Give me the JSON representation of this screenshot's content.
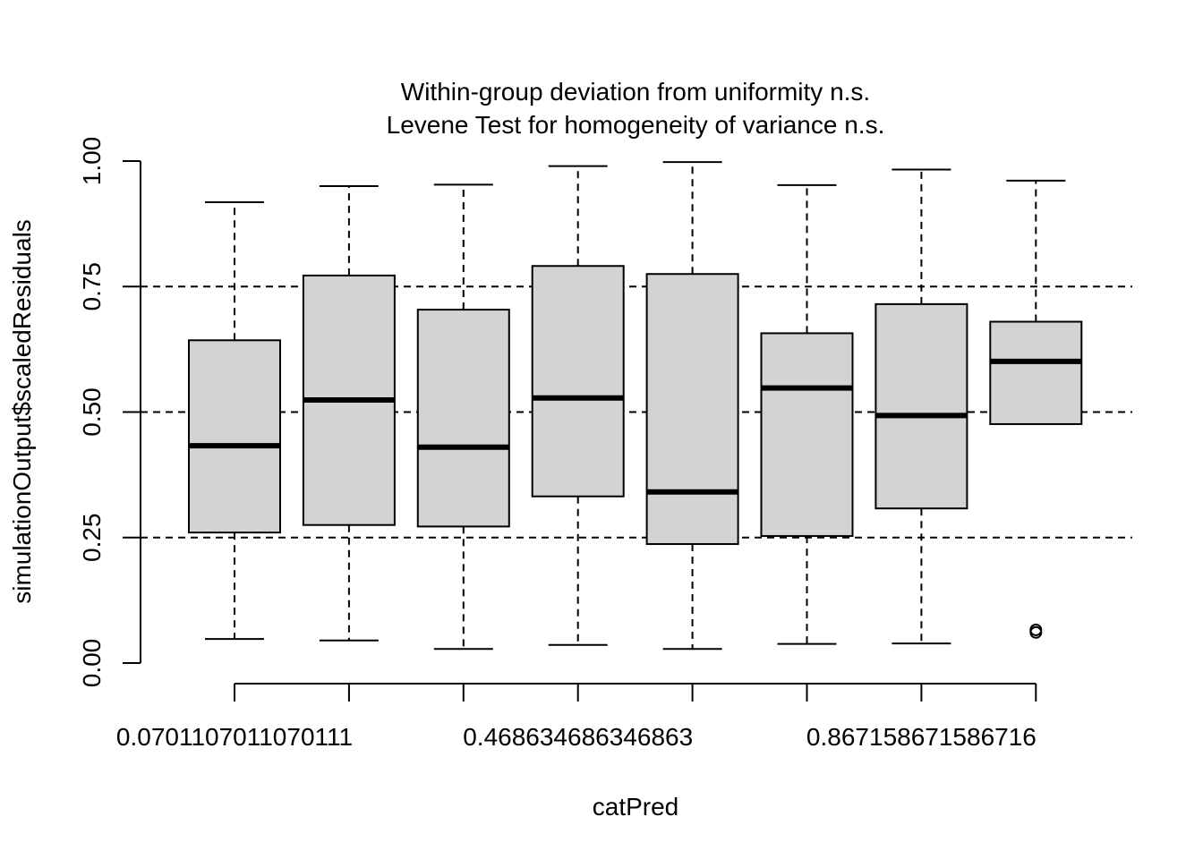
{
  "chart_data": {
    "type": "boxplot",
    "title_lines": [
      "Within-group deviation from uniformity n.s.",
      "Levene Test for homogeneity of variance n.s."
    ],
    "xlabel": "catPred",
    "ylabel": "simulationOutput$scaledResiduals",
    "ylim": [
      0,
      1
    ],
    "y_ticks": [
      "0.00",
      "0.25",
      "0.50",
      "0.75",
      "1.00"
    ],
    "x_tick_labels": [
      "0.0701107011070111",
      "",
      "",
      "0.468634686346863",
      "",
      "",
      "0.867158671586716",
      ""
    ],
    "reference_lines": [
      0.25,
      0.5,
      0.75
    ],
    "groups": [
      {
        "whisker_low": 0.048,
        "q1": 0.26,
        "median": 0.433,
        "q3": 0.643,
        "whisker_high": 0.918,
        "outliers": []
      },
      {
        "whisker_low": 0.045,
        "q1": 0.275,
        "median": 0.524,
        "q3": 0.772,
        "whisker_high": 0.95,
        "outliers": []
      },
      {
        "whisker_low": 0.028,
        "q1": 0.272,
        "median": 0.43,
        "q3": 0.704,
        "whisker_high": 0.953,
        "outliers": []
      },
      {
        "whisker_low": 0.036,
        "q1": 0.332,
        "median": 0.528,
        "q3": 0.791,
        "whisker_high": 0.99,
        "outliers": []
      },
      {
        "whisker_low": 0.028,
        "q1": 0.237,
        "median": 0.341,
        "q3": 0.775,
        "whisker_high": 0.998,
        "outliers": []
      },
      {
        "whisker_low": 0.038,
        "q1": 0.253,
        "median": 0.548,
        "q3": 0.657,
        "whisker_high": 0.952,
        "outliers": []
      },
      {
        "whisker_low": 0.039,
        "q1": 0.308,
        "median": 0.493,
        "q3": 0.715,
        "whisker_high": 0.983,
        "outliers": []
      },
      {
        "whisker_low": null,
        "q1": 0.476,
        "median": 0.601,
        "q3": 0.68,
        "whisker_high": 0.961,
        "outliers": [
          0.061,
          0.066
        ]
      }
    ],
    "box_fill": "#d3d3d3",
    "grid": false
  }
}
